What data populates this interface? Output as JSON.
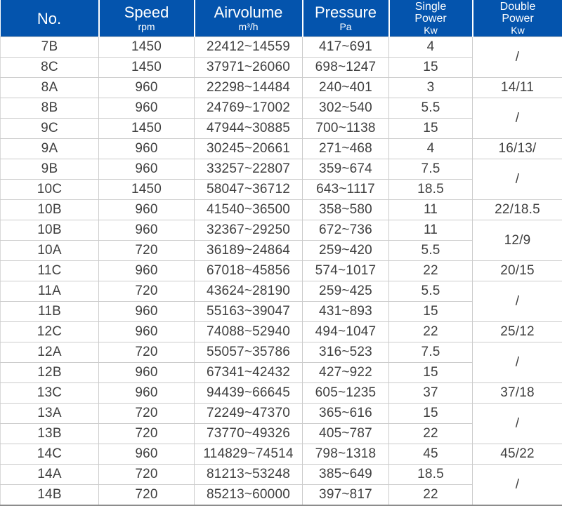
{
  "colors": {
    "header_bg": "#0454ad",
    "header_text": "#ffffff",
    "body_text": "#3f3f3f",
    "grid_line": "#cccccc",
    "bottom_border": "#8c8c8c"
  },
  "table": {
    "columns": [
      {
        "label": "No."
      },
      {
        "label": "Speed",
        "unit": "rpm"
      },
      {
        "label": "Airvolume",
        "unit": "m³/h"
      },
      {
        "label": "Pressure",
        "unit": "Pa"
      },
      {
        "line1": "Single",
        "line2": "Power",
        "unit": "Kw"
      },
      {
        "line1": "Double",
        "line2": "Power",
        "unit": "Kw"
      }
    ],
    "rows": [
      {
        "no": "7B",
        "speed": "1450",
        "airvolume": "22412~14559",
        "pressure": "417~691",
        "single": "4",
        "double": {
          "value": "/",
          "rowspan": 2
        }
      },
      {
        "no": "8C",
        "speed": "1450",
        "airvolume": "37971~26060",
        "pressure": "698~1247",
        "single": "15"
      },
      {
        "no": "8A",
        "speed": "960",
        "airvolume": "22298~14484",
        "pressure": "240~401",
        "single": "3",
        "double": {
          "value": "14/11",
          "rowspan": 1
        }
      },
      {
        "no": "8B",
        "speed": "960",
        "airvolume": "24769~17002",
        "pressure": "302~540",
        "single": "5.5",
        "double": {
          "value": "/",
          "rowspan": 2
        }
      },
      {
        "no": "9C",
        "speed": "1450",
        "airvolume": "47944~30885",
        "pressure": "700~1138",
        "single": "15"
      },
      {
        "no": "9A",
        "speed": "960",
        "airvolume": "30245~20661",
        "pressure": "271~468",
        "single": "4",
        "double": {
          "value": "16/13/",
          "rowspan": 1
        }
      },
      {
        "no": "9B",
        "speed": "960",
        "airvolume": "33257~22807",
        "pressure": "359~674",
        "single": "7.5",
        "double": {
          "value": "/",
          "rowspan": 2
        }
      },
      {
        "no": "10C",
        "speed": "1450",
        "airvolume": "58047~36712",
        "pressure": "643~1117",
        "single": "18.5"
      },
      {
        "no": "10B",
        "speed": "960",
        "airvolume": "41540~36500",
        "pressure": "358~580",
        "single": "11",
        "double": {
          "value": "22/18.5",
          "rowspan": 1
        }
      },
      {
        "no": "10B",
        "speed": "960",
        "airvolume": "32367~29250",
        "pressure": "672~736",
        "single": "11",
        "double": {
          "value": "12/9",
          "rowspan": 2
        }
      },
      {
        "no": "10A",
        "speed": "720",
        "airvolume": "36189~24864",
        "pressure": "259~420",
        "single": "5.5"
      },
      {
        "no": "11C",
        "speed": "960",
        "airvolume": "67018~45856",
        "pressure": "574~1017",
        "single": "22",
        "double": {
          "value": "20/15",
          "rowspan": 1
        }
      },
      {
        "no": "11A",
        "speed": "720",
        "airvolume": "43624~28190",
        "pressure": "259~425",
        "single": "5.5",
        "double": {
          "value": "/",
          "rowspan": 2
        }
      },
      {
        "no": "11B",
        "speed": "960",
        "airvolume": "55163~39047",
        "pressure": "431~893",
        "single": "15"
      },
      {
        "no": "12C",
        "speed": "960",
        "airvolume": "74088~52940",
        "pressure": "494~1047",
        "single": "22",
        "double": {
          "value": "25/12",
          "rowspan": 1
        }
      },
      {
        "no": "12A",
        "speed": "720",
        "airvolume": "55057~35786",
        "pressure": "316~523",
        "single": "7.5",
        "double": {
          "value": "/",
          "rowspan": 2
        }
      },
      {
        "no": "12B",
        "speed": "960",
        "airvolume": "67341~42432",
        "pressure": "427~922",
        "single": "15"
      },
      {
        "no": "13C",
        "speed": "960",
        "airvolume": "94439~66645",
        "pressure": "605~1235",
        "single": "37",
        "double": {
          "value": "37/18",
          "rowspan": 1
        }
      },
      {
        "no": "13A",
        "speed": "720",
        "airvolume": "72249~47370",
        "pressure": "365~616",
        "single": "15",
        "double": {
          "value": "/",
          "rowspan": 2
        }
      },
      {
        "no": "13B",
        "speed": "720",
        "airvolume": "73770~49326",
        "pressure": "405~787",
        "single": "22"
      },
      {
        "no": "14C",
        "speed": "960",
        "airvolume": "114829~74514",
        "pressure": "798~1318",
        "single": "45",
        "double": {
          "value": "45/22",
          "rowspan": 1
        }
      },
      {
        "no": "14A",
        "speed": "720",
        "airvolume": "81213~53248",
        "pressure": "385~649",
        "single": "18.5",
        "double": {
          "value": "/",
          "rowspan": 2
        }
      },
      {
        "no": "14B",
        "speed": "720",
        "airvolume": "85213~60000",
        "pressure": "397~817",
        "single": "22"
      }
    ]
  }
}
